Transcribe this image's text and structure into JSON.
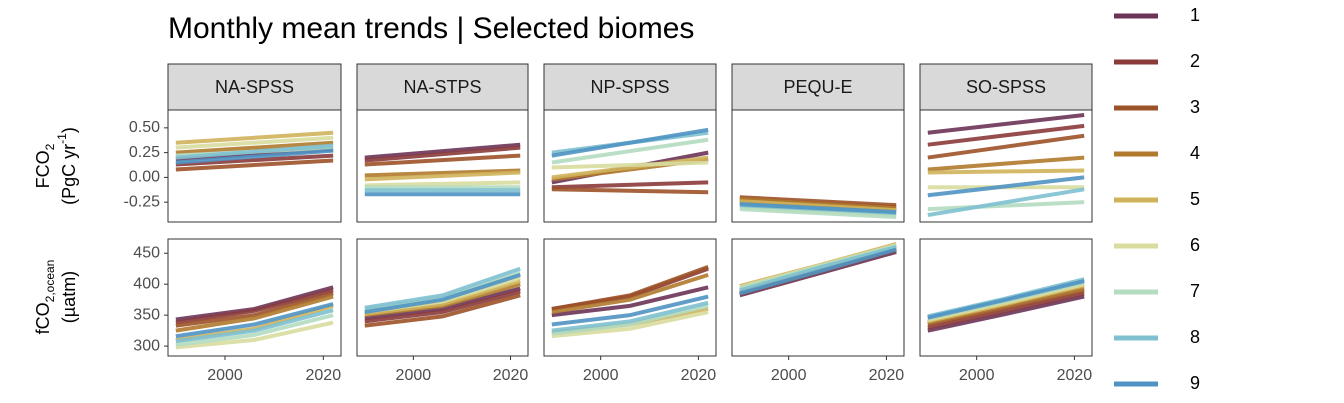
{
  "chart_data": {
    "type": "line",
    "title": "Monthly mean trends | Selected biomes",
    "series": [
      {
        "name": "1",
        "color": "#6b3356"
      },
      {
        "name": "2",
        "color": "#8b3a3a"
      },
      {
        "name": "3",
        "color": "#9c5228"
      },
      {
        "name": "4",
        "color": "#b07a2e"
      },
      {
        "name": "5",
        "color": "#cfb25a"
      },
      {
        "name": "6",
        "color": "#d8dc9e"
      },
      {
        "name": "7",
        "color": "#b3dcc0"
      },
      {
        "name": "8",
        "color": "#7ec0cf"
      },
      {
        "name": "9",
        "color": "#4f93c3"
      }
    ],
    "xlim": [
      1988.4,
      2023.6
    ],
    "xticks": [
      2000,
      2020
    ],
    "x_flux": [
      1990,
      2022
    ],
    "x_fco2": [
      1990,
      2006,
      2022
    ],
    "ylabel_flux": [
      "FCO",
      "2",
      "(PgC yr",
      "-1",
      ")"
    ],
    "ylabel_fco2": [
      "fCO",
      "2,ocean",
      "(µatm)"
    ],
    "ylim_flux": [
      -0.45,
      0.68
    ],
    "yticks_flux": [
      {
        "value": -0.25,
        "label": "-0.25"
      },
      {
        "value": 0,
        "label": "0.00"
      },
      {
        "value": 0.25,
        "label": "0.25"
      },
      {
        "value": 0.5,
        "label": "0.50"
      }
    ],
    "ylim_fco2": [
      284,
      473
    ],
    "yticks_fco2": [
      300,
      350,
      400,
      450
    ],
    "facets": [
      {
        "label": "NA-SPSS",
        "flux": [
          [
            0.18,
            0.28
          ],
          [
            0.13,
            0.22
          ],
          [
            0.08,
            0.17
          ],
          [
            0.25,
            0.35
          ],
          [
            0.35,
            0.45
          ],
          [
            0.3,
            0.4
          ],
          [
            0.22,
            0.3
          ],
          [
            0.2,
            0.32
          ],
          [
            0.15,
            0.27
          ]
        ],
        "fco2": [
          [
            343,
            360,
            395
          ],
          [
            338,
            357,
            390
          ],
          [
            333,
            350,
            385
          ],
          [
            325,
            345,
            380
          ],
          [
            310,
            328,
            365
          ],
          [
            298,
            310,
            338
          ],
          [
            302,
            318,
            350
          ],
          [
            308,
            325,
            358
          ],
          [
            316,
            335,
            368
          ]
        ]
      },
      {
        "label": "NA-STPS",
        "flux": [
          [
            0.2,
            0.33
          ],
          [
            0.17,
            0.3
          ],
          [
            0.13,
            0.22
          ],
          [
            0.02,
            0.07
          ],
          [
            -0.02,
            0.05
          ],
          [
            -0.08,
            -0.05
          ],
          [
            -0.1,
            -0.1
          ],
          [
            -0.13,
            -0.13
          ],
          [
            -0.17,
            -0.17
          ]
        ],
        "fco2": [
          [
            345,
            360,
            393
          ],
          [
            340,
            355,
            388
          ],
          [
            333,
            348,
            382
          ],
          [
            350,
            365,
            400
          ],
          [
            352,
            368,
            405
          ],
          [
            355,
            372,
            410
          ],
          [
            360,
            378,
            418
          ],
          [
            362,
            382,
            425
          ],
          [
            355,
            375,
            415
          ]
        ]
      },
      {
        "label": "NP-SPSS",
        "flux": [
          [
            -0.05,
            0.25
          ],
          [
            -0.1,
            -0.05
          ],
          [
            -0.12,
            -0.15
          ],
          [
            -0.02,
            0.18
          ],
          [
            0.0,
            0.2
          ],
          [
            0.1,
            0.15
          ],
          [
            0.15,
            0.38
          ],
          [
            0.25,
            0.45
          ],
          [
            0.22,
            0.48
          ]
        ],
        "fco2": [
          [
            350,
            365,
            395
          ],
          [
            360,
            380,
            425
          ],
          [
            360,
            382,
            428
          ],
          [
            355,
            375,
            415
          ],
          [
            322,
            335,
            360
          ],
          [
            316,
            328,
            355
          ],
          [
            320,
            335,
            365
          ],
          [
            325,
            340,
            370
          ],
          [
            335,
            350,
            380
          ]
        ]
      },
      {
        "label": "PEQU-E",
        "flux": [
          [
            -0.25,
            -0.33
          ],
          [
            -0.22,
            -0.3
          ],
          [
            -0.2,
            -0.28
          ],
          [
            -0.22,
            -0.31
          ],
          [
            -0.24,
            -0.33
          ],
          [
            -0.3,
            -0.38
          ],
          [
            -0.32,
            -0.4
          ],
          [
            -0.28,
            -0.36
          ],
          [
            -0.27,
            -0.35
          ]
        ],
        "fco2": [
          [
            382,
            417,
            452
          ],
          [
            384,
            419,
            455
          ],
          [
            386,
            421,
            458
          ],
          [
            390,
            425,
            462
          ],
          [
            397,
            430,
            465
          ],
          [
            395,
            429,
            463
          ],
          [
            393,
            428,
            462
          ],
          [
            390,
            426,
            460
          ],
          [
            385,
            420,
            456
          ]
        ]
      },
      {
        "label": "SO-SPSS",
        "flux": [
          [
            0.45,
            0.63
          ],
          [
            0.33,
            0.52
          ],
          [
            0.2,
            0.42
          ],
          [
            0.08,
            0.2
          ],
          [
            0.05,
            0.07
          ],
          [
            -0.1,
            -0.1
          ],
          [
            -0.32,
            -0.25
          ],
          [
            -0.38,
            -0.12
          ],
          [
            -0.18,
            0.0
          ]
        ],
        "fco2": [
          [
            325,
            352,
            380
          ],
          [
            330,
            357,
            385
          ],
          [
            335,
            362,
            390
          ],
          [
            338,
            366,
            393
          ],
          [
            340,
            368,
            398
          ],
          [
            342,
            370,
            400
          ],
          [
            345,
            373,
            403
          ],
          [
            348,
            377,
            408
          ],
          [
            346,
            375,
            405
          ]
        ]
      }
    ]
  }
}
